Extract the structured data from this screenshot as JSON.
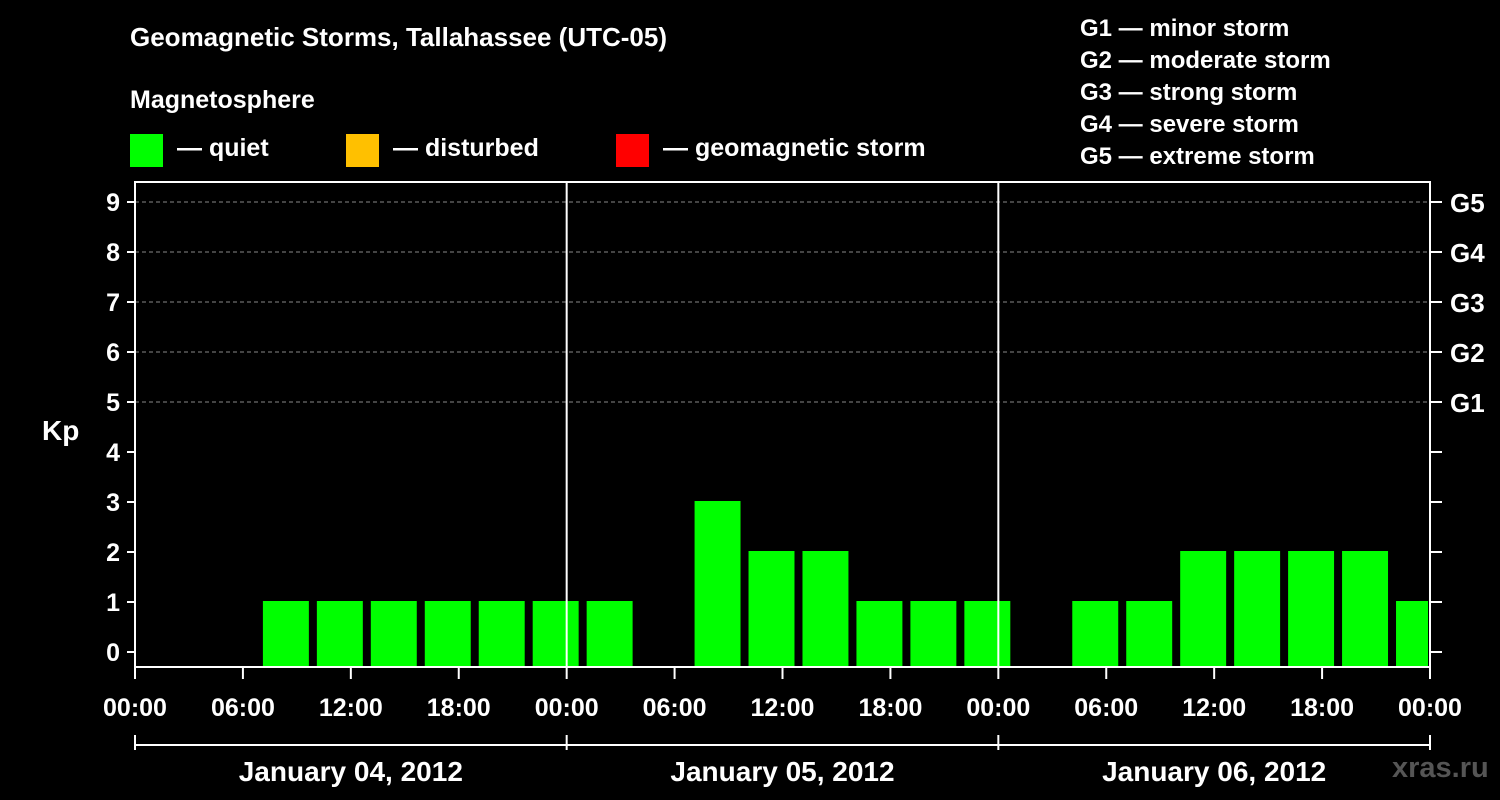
{
  "header": {
    "title": "Geomagnetic Storms, Tallahassee (UTC-05)",
    "subtitle": "Magnetosphere"
  },
  "legend": {
    "items": [
      {
        "label": "— quiet",
        "color": "#00ff00"
      },
      {
        "label": "— disturbed",
        "color": "#ffc000"
      },
      {
        "label": "— geomagnetic storm",
        "color": "#ff0000"
      }
    ]
  },
  "g_legend": [
    "G1 — minor storm",
    "G2 — moderate storm",
    "G3 — strong storm",
    "G4 — severe storm",
    "G5 — extreme storm"
  ],
  "watermark": "xras.ru",
  "chart_data": {
    "type": "bar",
    "title": "Geomagnetic Storms, Tallahassee (UTC-05)",
    "ylabel": "Kp",
    "ylim": [
      0,
      9
    ],
    "yticks": [
      "0",
      "1",
      "2",
      "3",
      "4",
      "5",
      "6",
      "7",
      "8",
      "9"
    ],
    "right_ticks": [
      {
        "kp": 5,
        "label": "G1"
      },
      {
        "kp": 6,
        "label": "G2"
      },
      {
        "kp": 7,
        "label": "G3"
      },
      {
        "kp": 8,
        "label": "G4"
      },
      {
        "kp": 9,
        "label": "G5"
      }
    ],
    "x_range_hours": [
      0,
      72
    ],
    "xticks": [
      {
        "hour": 0,
        "label": "00:00"
      },
      {
        "hour": 6,
        "label": "06:00"
      },
      {
        "hour": 12,
        "label": "12:00"
      },
      {
        "hour": 18,
        "label": "18:00"
      },
      {
        "hour": 24,
        "label": "00:00"
      },
      {
        "hour": 30,
        "label": "06:00"
      },
      {
        "hour": 36,
        "label": "12:00"
      },
      {
        "hour": 42,
        "label": "18:00"
      },
      {
        "hour": 48,
        "label": "00:00"
      },
      {
        "hour": 54,
        "label": "06:00"
      },
      {
        "hour": 60,
        "label": "12:00"
      },
      {
        "hour": 66,
        "label": "18:00"
      },
      {
        "hour": 72,
        "label": "00:00"
      }
    ],
    "days": [
      {
        "label": "January 04, 2012",
        "start_hour": 0,
        "end_hour": 24
      },
      {
        "label": "January 05, 2012",
        "start_hour": 24,
        "end_hour": 48
      },
      {
        "label": "January 06, 2012",
        "start_hour": 48,
        "end_hour": 72
      }
    ],
    "bin_hours": 3,
    "first_bin_start_hour": 1,
    "kp_values": [
      null,
      null,
      1,
      1,
      1,
      1,
      1,
      1,
      1,
      null,
      3,
      2,
      2,
      1,
      1,
      1,
      null,
      1,
      1,
      2,
      2,
      2,
      2,
      1
    ],
    "thresholds": {
      "disturbed": 4,
      "storm": 5
    }
  }
}
